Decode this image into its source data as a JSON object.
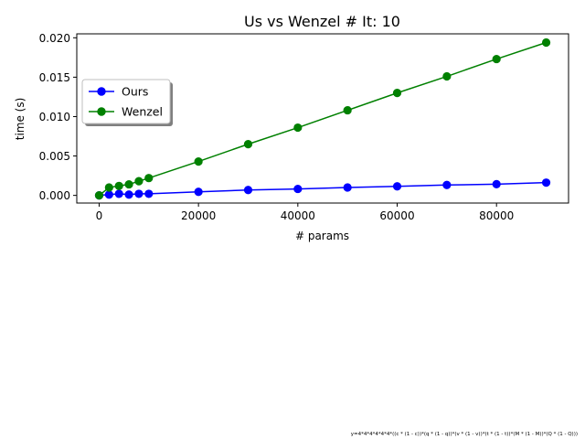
{
  "chart_data": {
    "type": "line",
    "title": "Us vs Wenzel # It: 10",
    "xlabel": "# params",
    "ylabel": "time (s)",
    "xlim": [
      -4500,
      94500
    ],
    "ylim": [
      -0.00097,
      0.0205
    ],
    "xticks": [
      0,
      20000,
      40000,
      60000,
      80000
    ],
    "xtick_labels": [
      "0",
      "20000",
      "40000",
      "60000",
      "80000"
    ],
    "yticks": [
      0.0,
      0.005,
      0.01,
      0.015,
      0.02
    ],
    "ytick_labels": [
      "0.000",
      "0.005",
      "0.010",
      "0.015",
      "0.020"
    ],
    "grid": false,
    "legend_position": "center-left",
    "series": [
      {
        "name": "Ours",
        "color": "#0000ff",
        "marker": "circle",
        "x": [
          0,
          2000,
          4000,
          6000,
          8000,
          10000,
          20000,
          30000,
          40000,
          50000,
          60000,
          70000,
          80000,
          90000
        ],
        "y": [
          0.0,
          0.0001,
          0.0002,
          0.0001,
          0.0002,
          0.0002,
          0.00045,
          0.00068,
          0.00082,
          0.001,
          0.00115,
          0.00132,
          0.00142,
          0.00162
        ]
      },
      {
        "name": "Wenzel",
        "color": "#008000",
        "marker": "circle",
        "x": [
          0,
          2000,
          4000,
          6000,
          8000,
          10000,
          20000,
          30000,
          40000,
          50000,
          60000,
          70000,
          80000,
          90000
        ],
        "y": [
          0.0,
          0.001,
          0.0012,
          0.0014,
          0.0018,
          0.0022,
          0.0043,
          0.0065,
          0.0086,
          0.0108,
          0.013,
          0.0151,
          0.0173,
          0.0194
        ]
      }
    ]
  },
  "footnote": "y=4*4*4*4*4*4*((c * (1 - c))*(q * (1 - q))*(v * (1 - v))*(t * (1 - t))*(M * (1 - M))*(Q * (1 - Q)))"
}
